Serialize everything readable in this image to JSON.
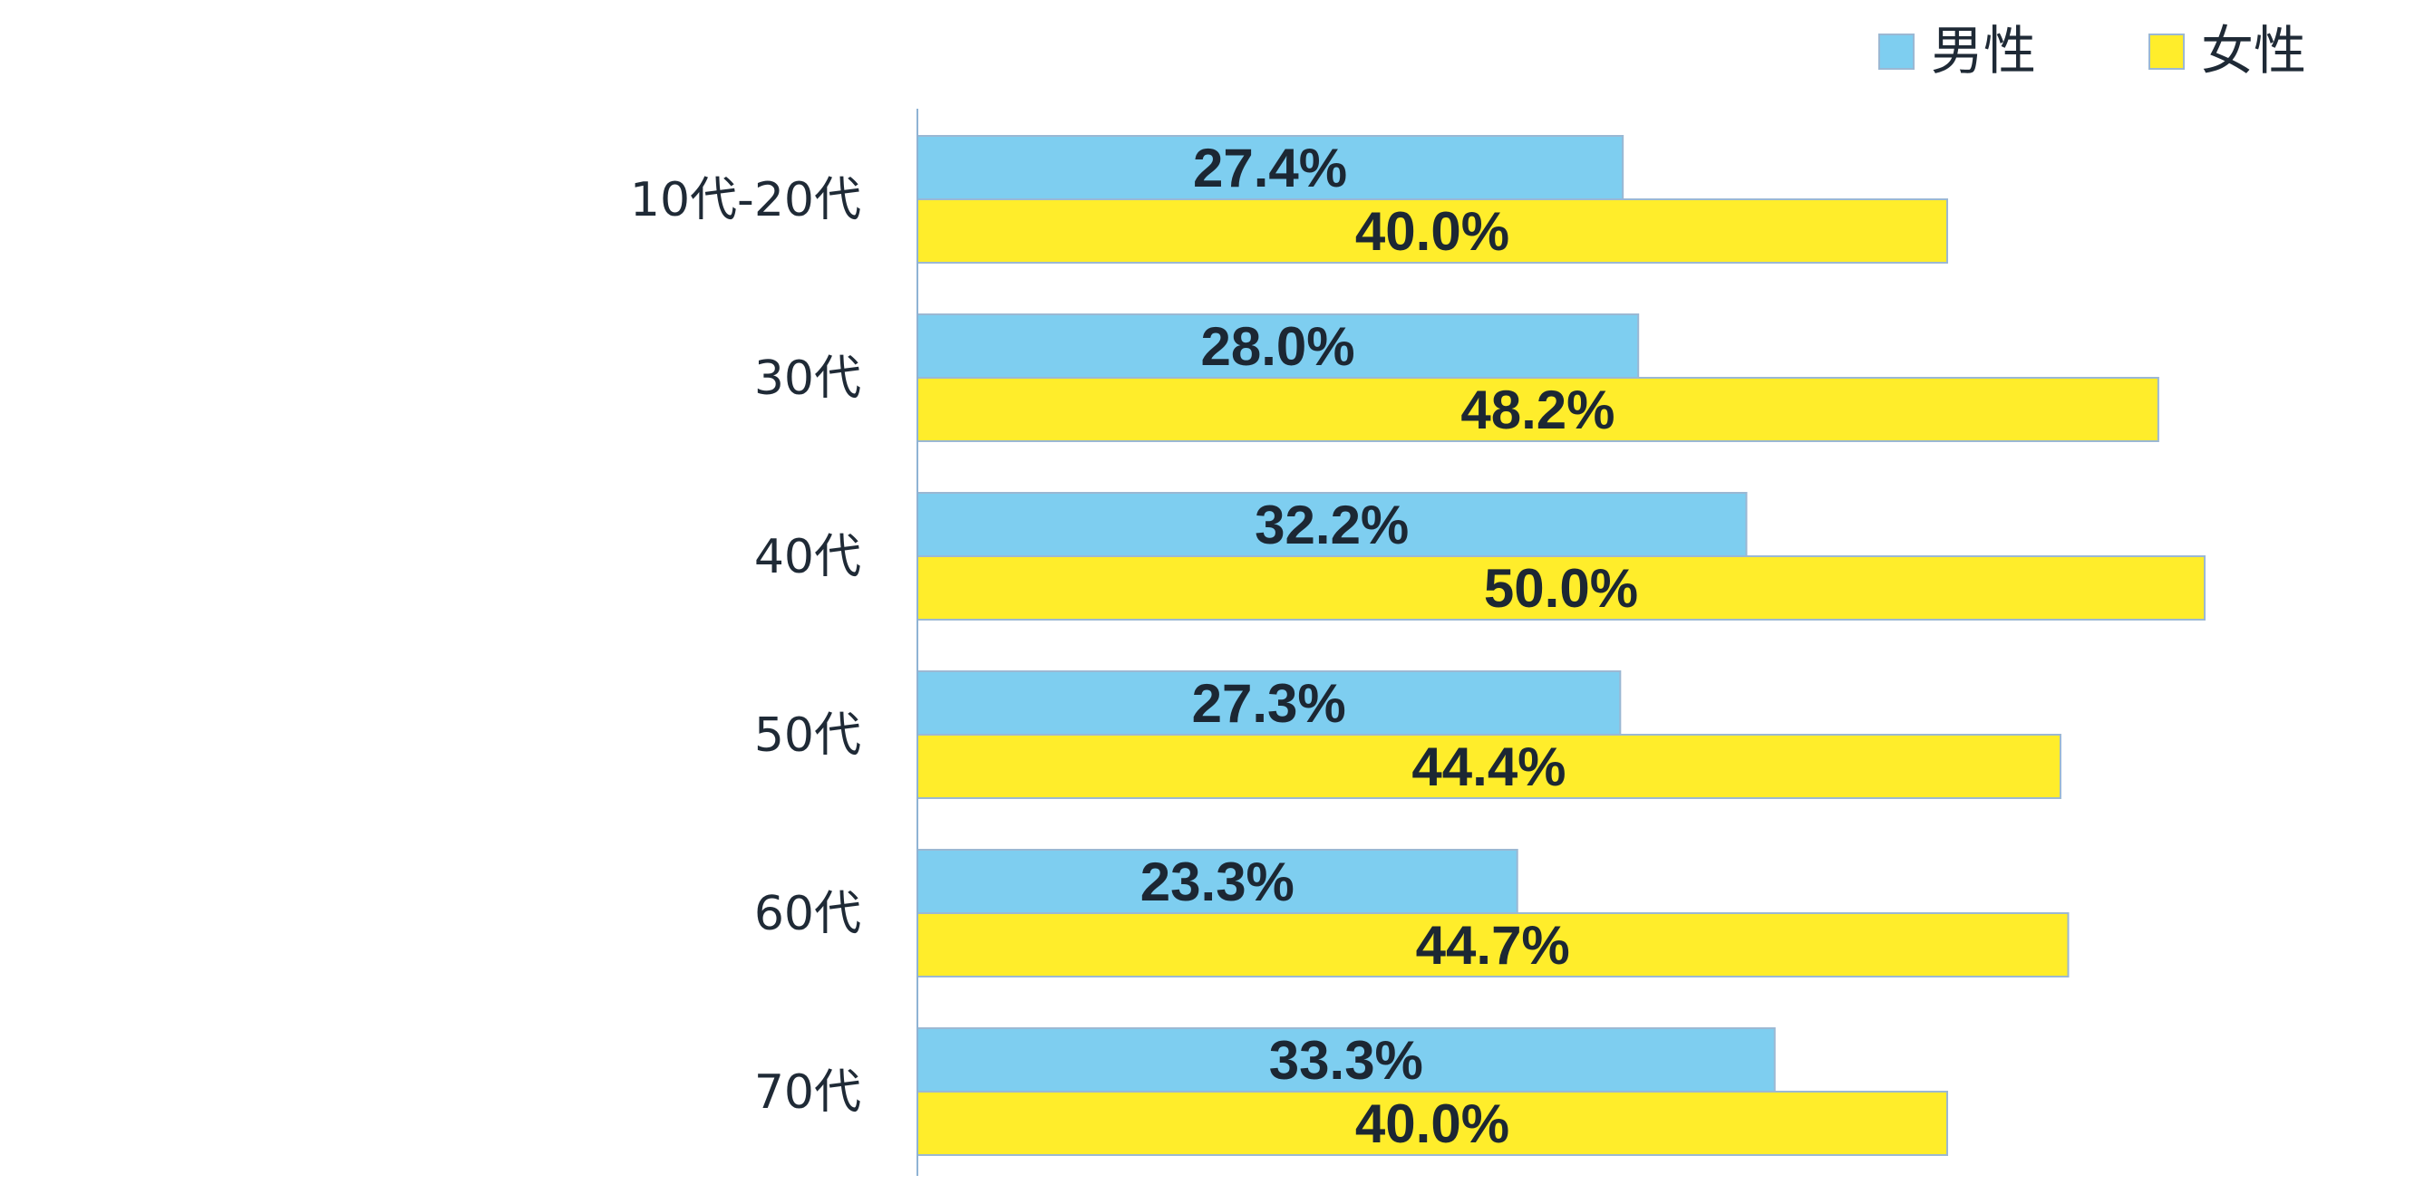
{
  "chart_data": {
    "type": "bar",
    "orientation": "horizontal",
    "categories": [
      "10代-20代",
      "30代",
      "40代",
      "50代",
      "60代",
      "70代"
    ],
    "series": [
      {
        "name": "男性",
        "color": "#7ecef0",
        "values": [
          27.4,
          28.0,
          32.2,
          27.3,
          23.3,
          33.3
        ]
      },
      {
        "name": "女性",
        "color": "#ffed2b",
        "values": [
          40.0,
          48.2,
          50.0,
          44.4,
          44.7,
          40.0
        ]
      }
    ],
    "value_labels": [
      [
        "27.4%",
        "28.0%",
        "32.2%",
        "27.3%",
        "23.3%",
        "33.3%"
      ],
      [
        "40.0%",
        "48.2%",
        "50.0%",
        "44.4%",
        "44.7%",
        "40.0%"
      ]
    ],
    "xlim": [
      0,
      50
    ],
    "grid": false,
    "legend": "top-right",
    "bar_border_color": "#9bb8d3",
    "axis_color": "#8fb3d4",
    "title": "",
    "xlabel": "",
    "ylabel": ""
  }
}
